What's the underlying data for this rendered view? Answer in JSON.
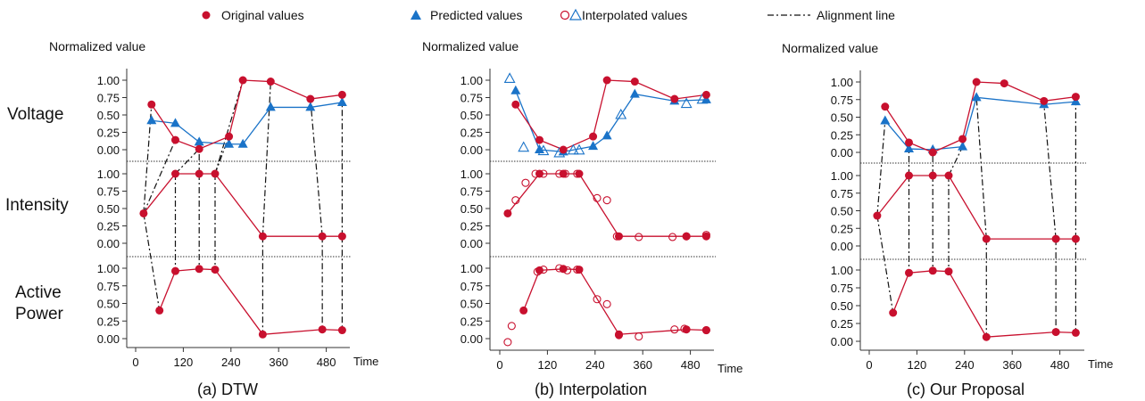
{
  "legend": {
    "original": "Original values",
    "predicted": "Predicted values",
    "interpolated": "Interpolated values",
    "alignment": "Alignment line"
  },
  "row_labels": {
    "voltage": "Voltage",
    "intensity": "Intensity",
    "active_power_1": "Active",
    "active_power_2": "Power"
  },
  "colors": {
    "original": "#c8102e",
    "predicted": "#1a73c8",
    "alignment": "#111111",
    "separator": "#333333"
  },
  "chart_data": [
    {
      "type": "line",
      "title": "(a) DTW",
      "ylabel": "Normalized value",
      "xlabel": "Time",
      "xlim": [
        0,
        540
      ],
      "xticks": [
        0,
        120,
        240,
        360,
        480
      ],
      "yticks": [
        "1.00",
        "0.75",
        "0.50",
        "0.25",
        "0.00"
      ],
      "ylim": [
        0,
        1
      ],
      "series": {
        "voltage_original": {
          "x": [
            40,
            100,
            160,
            235,
            270,
            340,
            440,
            520
          ],
          "y": [
            0.65,
            0.14,
            0.01,
            0.19,
            1.0,
            0.98,
            0.73,
            0.79
          ]
        },
        "voltage_predicted": {
          "x": [
            40,
            100,
            160,
            235,
            270,
            340,
            440,
            520
          ],
          "y": [
            0.42,
            0.38,
            0.11,
            0.08,
            0.08,
            0.61,
            0.61,
            0.68
          ]
        },
        "intensity_original": {
          "x": [
            20,
            100,
            160,
            200,
            320,
            470,
            520
          ],
          "y": [
            0.43,
            1.0,
            1.0,
            1.0,
            0.1,
            0.1,
            0.1
          ]
        },
        "power_original": {
          "x": [
            60,
            100,
            160,
            200,
            320,
            470,
            520
          ],
          "y": [
            0.4,
            0.96,
            0.99,
            0.98,
            0.06,
            0.13,
            0.12
          ]
        }
      },
      "alignments": [
        [
          "intensity_original",
          0,
          "voltage_original",
          0
        ],
        [
          "intensity_original",
          0,
          "voltage_original",
          1
        ],
        [
          "intensity_original",
          0,
          "power_original",
          0
        ],
        [
          "intensity_original",
          1,
          "voltage_original",
          2
        ],
        [
          "intensity_original",
          1,
          "power_original",
          1
        ],
        [
          "intensity_original",
          2,
          "voltage_original",
          2
        ],
        [
          "intensity_original",
          2,
          "power_original",
          2
        ],
        [
          "intensity_original",
          3,
          "voltage_original",
          3
        ],
        [
          "intensity_original",
          3,
          "voltage_original",
          4
        ],
        [
          "intensity_original",
          3,
          "power_original",
          3
        ],
        [
          "intensity_original",
          4,
          "voltage_original",
          5
        ],
        [
          "intensity_original",
          4,
          "power_original",
          4
        ],
        [
          "intensity_original",
          5,
          "voltage_original",
          6
        ],
        [
          "intensity_original",
          5,
          "power_original",
          5
        ],
        [
          "intensity_original",
          6,
          "voltage_original",
          7
        ],
        [
          "intensity_original",
          6,
          "power_original",
          6
        ]
      ]
    },
    {
      "type": "line",
      "title": "(b) Interpolation",
      "ylabel": "Normalized value",
      "xlabel": "Time",
      "xlim": [
        0,
        540
      ],
      "xticks": [
        0,
        120,
        240,
        360,
        480
      ],
      "yticks": [
        "1.00",
        "0.75",
        "0.50",
        "0.25",
        "0.00"
      ],
      "ylim": [
        0,
        1
      ],
      "series": {
        "voltage_original": {
          "x": [
            40,
            100,
            160,
            235,
            270,
            340,
            440,
            520
          ],
          "y": [
            0.65,
            0.14,
            0.0,
            0.19,
            1.0,
            0.98,
            0.73,
            0.79
          ]
        },
        "voltage_predicted": {
          "x": [
            40,
            100,
            160,
            235,
            270,
            340,
            440,
            520
          ],
          "y": [
            0.85,
            0.0,
            -0.03,
            0.05,
            0.2,
            0.8,
            0.7,
            0.72
          ]
        },
        "voltage_interpolated": {
          "x": [
            25,
            60,
            110,
            150,
            185,
            200,
            305,
            470,
            510
          ],
          "y": [
            1.02,
            0.03,
            -0.02,
            -0.05,
            -0.01,
            -0.01,
            0.5,
            0.66,
            0.72
          ]
        },
        "intensity_original": {
          "x": [
            20,
            100,
            160,
            200,
            300,
            470,
            520
          ],
          "y": [
            0.43,
            1.0,
            1.0,
            1.0,
            0.1,
            0.1,
            0.1
          ]
        },
        "intensity_interpolated": {
          "x": [
            40,
            65,
            90,
            110,
            150,
            165,
            195,
            245,
            270,
            295,
            350,
            435,
            470,
            520
          ],
          "y": [
            0.62,
            0.87,
            1.0,
            1.0,
            1.0,
            1.0,
            1.0,
            0.65,
            0.62,
            0.1,
            0.09,
            0.09,
            0.1,
            0.12
          ]
        },
        "power_original": {
          "x": [
            60,
            100,
            160,
            200,
            300,
            470,
            520
          ],
          "y": [
            0.4,
            0.97,
            0.99,
            0.98,
            0.06,
            0.13,
            0.12
          ]
        },
        "power_interpolated": {
          "x": [
            20,
            30,
            95,
            110,
            150,
            170,
            195,
            245,
            270,
            300,
            350,
            440,
            465,
            520
          ],
          "y": [
            -0.05,
            0.18,
            0.95,
            0.98,
            1.0,
            0.97,
            0.98,
            0.56,
            0.49,
            0.05,
            0.03,
            0.13,
            0.14,
            0.12
          ]
        }
      }
    },
    {
      "type": "line",
      "title": "(c) Our Proposal",
      "ylabel": "Normalized value",
      "xlabel": "Time",
      "xlim": [
        0,
        540
      ],
      "xticks": [
        0,
        120,
        240,
        360,
        480
      ],
      "yticks": [
        "1.00",
        "0.75",
        "0.50",
        "0.25",
        "0.00"
      ],
      "ylim": [
        0,
        1
      ],
      "series": {
        "voltage_original": {
          "x": [
            40,
            100,
            160,
            235,
            270,
            340,
            440,
            520
          ],
          "y": [
            0.65,
            0.14,
            0.0,
            0.19,
            1.0,
            0.98,
            0.73,
            0.79
          ]
        },
        "voltage_predicted": {
          "x": [
            40,
            100,
            160,
            235,
            270,
            440,
            520
          ],
          "y": [
            0.45,
            0.05,
            0.04,
            0.08,
            0.78,
            0.68,
            0.72
          ]
        },
        "intensity_original": {
          "x": [
            20,
            100,
            160,
            200,
            295,
            470,
            520
          ],
          "y": [
            0.43,
            1.0,
            1.0,
            1.0,
            0.1,
            0.1,
            0.1
          ]
        },
        "power_original": {
          "x": [
            60,
            100,
            160,
            200,
            295,
            470,
            520
          ],
          "y": [
            0.4,
            0.96,
            0.99,
            0.98,
            0.06,
            0.13,
            0.12
          ]
        }
      },
      "alignments": [
        [
          "intensity_original",
          0,
          "voltage_predicted",
          0
        ],
        [
          "intensity_original",
          0,
          "power_original",
          0
        ],
        [
          "intensity_original",
          1,
          "voltage_predicted",
          1
        ],
        [
          "intensity_original",
          1,
          "power_original",
          1
        ],
        [
          "intensity_original",
          2,
          "voltage_predicted",
          2
        ],
        [
          "intensity_original",
          2,
          "power_original",
          2
        ],
        [
          "intensity_original",
          3,
          "voltage_predicted",
          3
        ],
        [
          "intensity_original",
          3,
          "power_original",
          3
        ],
        [
          "intensity_original",
          4,
          "voltage_predicted",
          4
        ],
        [
          "intensity_original",
          4,
          "power_original",
          4
        ],
        [
          "intensity_original",
          5,
          "voltage_predicted",
          5
        ],
        [
          "intensity_original",
          5,
          "power_original",
          5
        ],
        [
          "intensity_original",
          6,
          "voltage_predicted",
          6
        ],
        [
          "intensity_original",
          6,
          "power_original",
          6
        ]
      ]
    }
  ]
}
